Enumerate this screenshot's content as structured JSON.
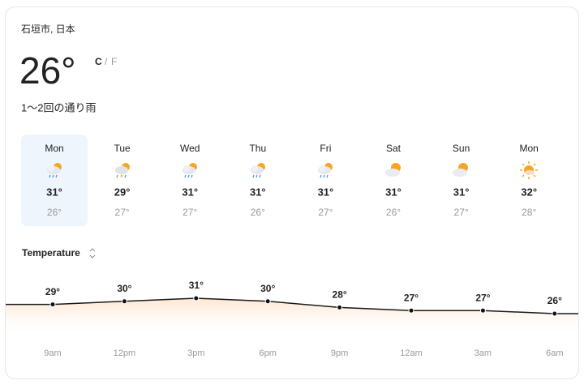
{
  "location": "石垣市, 日本",
  "current": {
    "temperature": "26°",
    "unit_c": "C",
    "unit_separator": "/",
    "unit_f": "F",
    "condition": "1〜2回の通り雨"
  },
  "days": [
    {
      "day": "Mon",
      "high": "31°",
      "low": "26°"
    },
    {
      "day": "Tue",
      "high": "29°",
      "low": "27°"
    },
    {
      "day": "Wed",
      "high": "31°",
      "low": "27°"
    },
    {
      "day": "Thu",
      "high": "31°",
      "low": "26°"
    },
    {
      "day": "Fri",
      "high": "31°",
      "low": "27°"
    },
    {
      "day": "Sat",
      "high": "31°",
      "low": "26°"
    },
    {
      "day": "Sun",
      "high": "31°",
      "low": "27°"
    },
    {
      "day": "Mon",
      "high": "32°",
      "low": "28°"
    }
  ],
  "selector": "Temperature",
  "hourly": {
    "type": "line",
    "times": [
      "9am",
      "12pm",
      "3pm",
      "6pm",
      "9pm",
      "12am",
      "3am",
      "6am"
    ],
    "values": [
      29,
      30,
      31,
      30,
      28,
      27,
      27,
      26
    ],
    "value_labels": [
      "29°",
      "30°",
      "31°",
      "30°",
      "28°",
      "27°",
      "27°",
      "26°"
    ]
  }
}
